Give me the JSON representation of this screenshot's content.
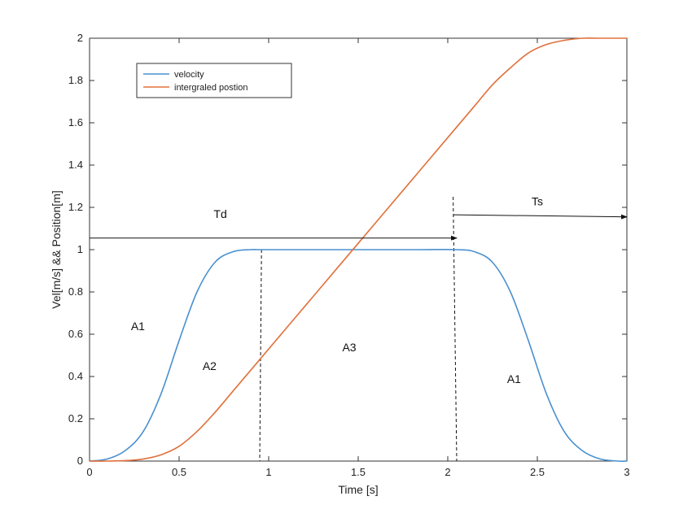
{
  "chart_data": {
    "type": "line",
    "title": "",
    "xlabel": "Time [s]",
    "ylabel": "Vel[m/s] && Position[m]",
    "xlim": [
      0,
      3
    ],
    "ylim": [
      0,
      2
    ],
    "xticks": [
      0,
      0.5,
      1,
      1.5,
      2,
      2.5,
      3
    ],
    "xtick_labels": [
      "0",
      "0.5",
      "1",
      "1.5",
      "2",
      "2.5",
      "3"
    ],
    "yticks": [
      0,
      0.2,
      0.4,
      0.6,
      0.8,
      1,
      1.2,
      1.4,
      1.6,
      1.8,
      2
    ],
    "ytick_labels": [
      "0",
      "0.2",
      "0.4",
      "0.6",
      "0.8",
      "1",
      "1.2",
      "1.4",
      "1.6",
      "1.8",
      "2"
    ],
    "grid": false,
    "legend_position": "top-left",
    "series": [
      {
        "name": "velocity",
        "color": "#4a90d0",
        "x": [
          0,
          0.1,
          0.2,
          0.3,
          0.4,
          0.5,
          0.6,
          0.7,
          0.8,
          0.9,
          0.95,
          1.2,
          1.5,
          1.8,
          2.05,
          2.15,
          2.25,
          2.35,
          2.45,
          2.55,
          2.65,
          2.75,
          2.85,
          2.95,
          3.0
        ],
        "values": [
          0,
          0.01,
          0.05,
          0.14,
          0.32,
          0.57,
          0.8,
          0.94,
          0.99,
          1.0,
          1.0,
          1.0,
          1.0,
          1.0,
          1.0,
          0.99,
          0.94,
          0.8,
          0.57,
          0.32,
          0.14,
          0.05,
          0.01,
          0.0,
          0
        ]
      },
      {
        "name": "intergraled postion",
        "color": "#e0703a",
        "x": [
          0,
          0.1,
          0.2,
          0.3,
          0.4,
          0.5,
          0.6,
          0.7,
          0.8,
          0.9,
          0.95,
          1.2,
          1.5,
          1.8,
          2.05,
          2.15,
          2.25,
          2.35,
          2.45,
          2.55,
          2.65,
          2.75,
          2.85,
          2.95,
          3.0
        ],
        "values": [
          0,
          0.0,
          0.002,
          0.01,
          0.03,
          0.07,
          0.14,
          0.23,
          0.33,
          0.43,
          0.48,
          0.73,
          1.03,
          1.33,
          1.58,
          1.68,
          1.78,
          1.86,
          1.93,
          1.97,
          1.99,
          2.0,
          2.0,
          2.0,
          2.0
        ]
      }
    ],
    "annotations": [
      {
        "text": "Td",
        "x": 0.73,
        "y": 1.15
      },
      {
        "text": "Ts",
        "x": 2.5,
        "y": 1.21
      },
      {
        "text": "A1",
        "x": 0.27,
        "y": 0.62
      },
      {
        "text": "A2",
        "x": 0.67,
        "y": 0.43
      },
      {
        "text": "A3",
        "x": 1.45,
        "y": 0.52
      },
      {
        "text": "A1",
        "x": 2.37,
        "y": 0.37
      }
    ],
    "arrows": [
      {
        "name": "td-arrow",
        "from": [
          0,
          1.055
        ],
        "to": [
          2.05,
          1.055
        ]
      },
      {
        "name": "ts-arrow",
        "from": [
          2.03,
          1.165
        ],
        "to": [
          3.0,
          1.155
        ]
      }
    ],
    "dashed_lines": [
      {
        "name": "dashed-line-t1",
        "x_top": 0.96,
        "x_bottom": 0.95,
        "y_top": 1.0,
        "y_bottom": 0
      },
      {
        "name": "dashed-line-t2",
        "x_top": 2.03,
        "x_bottom": 2.05,
        "y_top": 1.25,
        "y_bottom": 0
      }
    ]
  }
}
